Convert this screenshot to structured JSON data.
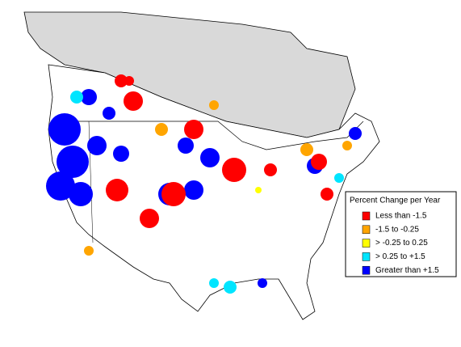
{
  "legend": {
    "title": "Percent Change per Year",
    "items": [
      {
        "label": "Less than -1.5",
        "color": "#ff0000"
      },
      {
        "label": "-1.5 to -0.25",
        "color": "#ffa500"
      },
      {
        "label": "> -0.25 to 0.25",
        "color": "#ffff00"
      },
      {
        "label": "> 0.25 to +1.5",
        "color": "#00e5ff"
      },
      {
        "label": "Greater than +1.5",
        "color": "#0000ff"
      }
    ]
  }
}
